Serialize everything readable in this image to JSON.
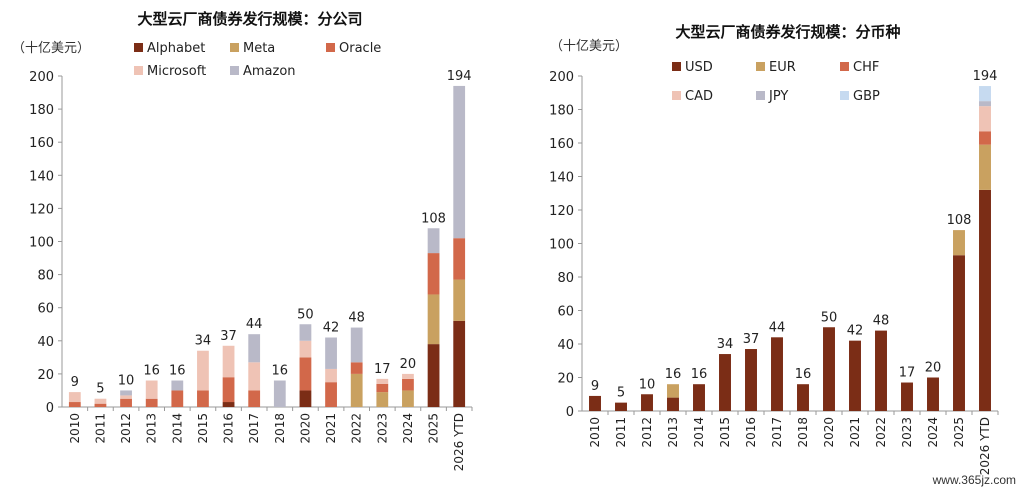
{
  "watermark": "www.365jz.com",
  "chart_data": [
    {
      "type": "bar",
      "stacked": true,
      "title": "大型云厂商债券发行规模：分公司",
      "unit_label": "（十亿美元）",
      "ylim": [
        0,
        200
      ],
      "yticks": [
        0,
        20,
        40,
        60,
        80,
        100,
        120,
        140,
        160,
        180,
        200
      ],
      "grid": false,
      "legend_position": "top-left",
      "categories": [
        "2010",
        "2011",
        "2012",
        "2013",
        "2014",
        "2015",
        "2016",
        "2017",
        "2018",
        "2020",
        "2021",
        "2022",
        "2023",
        "2024",
        "2025",
        "2026 YTD"
      ],
      "totals": [
        9,
        5,
        10,
        16,
        16,
        34,
        37,
        44,
        16,
        50,
        42,
        48,
        17,
        20,
        108,
        194
      ],
      "series": [
        {
          "name": "Alphabet",
          "color": "#7b2d16",
          "values": [
            0,
            0,
            0,
            0,
            0,
            0,
            3,
            0,
            0,
            10,
            0,
            0,
            0,
            0,
            38,
            52
          ]
        },
        {
          "name": "Meta",
          "color": "#c9a160",
          "values": [
            0,
            0,
            0,
            0,
            0,
            0,
            0,
            0,
            0,
            0,
            0,
            20,
            9,
            10,
            30,
            25
          ]
        },
        {
          "name": "Oracle",
          "color": "#d2684a",
          "values": [
            3,
            2,
            5,
            5,
            10,
            10,
            15,
            10,
            0,
            20,
            15,
            7,
            5,
            7,
            25,
            25
          ]
        },
        {
          "name": "Microsoft",
          "color": "#efc3b5",
          "values": [
            6,
            3,
            2,
            11,
            0,
            24,
            19,
            17,
            0,
            10,
            8,
            0,
            3,
            3,
            0,
            0
          ]
        },
        {
          "name": "Amazon",
          "color": "#b9b9c8",
          "values": [
            0,
            0,
            3,
            0,
            6,
            0,
            0,
            17,
            16,
            10,
            19,
            21,
            0,
            0,
            15,
            92
          ]
        }
      ]
    },
    {
      "type": "bar",
      "stacked": true,
      "title": "大型云厂商债券发行规模：分币种",
      "unit_label": "（十亿美元）",
      "ylim": [
        0,
        200
      ],
      "yticks": [
        0,
        20,
        40,
        60,
        80,
        100,
        120,
        140,
        160,
        180,
        200
      ],
      "grid": false,
      "legend_position": "top-left",
      "categories": [
        "2010",
        "2011",
        "2012",
        "2013",
        "2014",
        "2015",
        "2016",
        "2017",
        "2018",
        "2020",
        "2021",
        "2022",
        "2023",
        "2024",
        "2025",
        "2026 YTD"
      ],
      "totals": [
        9,
        5,
        10,
        16,
        16,
        34,
        37,
        44,
        16,
        50,
        42,
        48,
        17,
        20,
        108,
        194
      ],
      "series": [
        {
          "name": "USD",
          "color": "#7b2d16",
          "values": [
            9,
            5,
            10,
            8,
            16,
            34,
            37,
            44,
            16,
            50,
            42,
            48,
            17,
            20,
            93,
            132
          ]
        },
        {
          "name": "EUR",
          "color": "#c9a160",
          "values": [
            0,
            0,
            0,
            8,
            0,
            0,
            0,
            0,
            0,
            0,
            0,
            0,
            0,
            0,
            15,
            27
          ]
        },
        {
          "name": "CHF",
          "color": "#d2684a",
          "values": [
            0,
            0,
            0,
            0,
            0,
            0,
            0,
            0,
            0,
            0,
            0,
            0,
            0,
            0,
            0,
            8
          ]
        },
        {
          "name": "CAD",
          "color": "#efc3b5",
          "values": [
            0,
            0,
            0,
            0,
            0,
            0,
            0,
            0,
            0,
            0,
            0,
            0,
            0,
            0,
            0,
            15
          ]
        },
        {
          "name": "JPY",
          "color": "#b9b9c8",
          "values": [
            0,
            0,
            0,
            0,
            0,
            0,
            0,
            0,
            0,
            0,
            0,
            0,
            0,
            0,
            0,
            3
          ]
        },
        {
          "name": "GBP",
          "color": "#c6daf0",
          "values": [
            0,
            0,
            0,
            0,
            0,
            0,
            0,
            0,
            0,
            0,
            0,
            0,
            0,
            0,
            0,
            9
          ]
        }
      ]
    }
  ]
}
